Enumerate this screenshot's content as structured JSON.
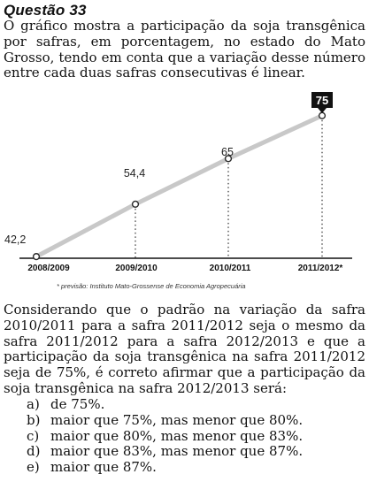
{
  "question": {
    "title": "Questão 33",
    "intro": "O gráfico mostra a participação da soja transgênica por safras, em porcentagem, no estado do Mato Grosso, tendo em conta que a variação desse número entre cada duas safras consecutivas é linear.",
    "prompt": "Considerando que o padrão na variação da safra 2010/2011 para a safra 2011/2012 seja o mesmo da safra 2011/2012 para a safra 2012/2013 e que a participação da soja transgênica na safra 2011/2012 seja de 75%, é correto afirmar que a participação da soja transgênica na safra 2012/2013 será:",
    "options": [
      {
        "letter": "a)",
        "text": "de 75%."
      },
      {
        "letter": "b)",
        "text": "maior que 75%, mas menor que 80%."
      },
      {
        "letter": "c)",
        "text": "maior que 80%, mas menor que 83%."
      },
      {
        "letter": "d)",
        "text": "maior que 83%, mas menor que 87%."
      },
      {
        "letter": "e)",
        "text": "maior que 87%."
      }
    ]
  },
  "chart_data": {
    "type": "line",
    "categories": [
      "2008/2009",
      "2009/2010",
      "2010/2011",
      "2011/2012*"
    ],
    "values": [
      42.2,
      54.4,
      65,
      75
    ],
    "value_labels": [
      "42,2",
      "54,4",
      "65",
      "75"
    ],
    "highlighted_index": 3,
    "footnote": "* previsão: Instituto Mato-Grossense de Economia Agropecuária",
    "colors": {
      "line": "#c8c8c8",
      "marker": "#2a2a2a",
      "axis": "#111111",
      "highlight_bg": "#111111",
      "highlight_text": "#ffffff"
    },
    "grid": false
  }
}
